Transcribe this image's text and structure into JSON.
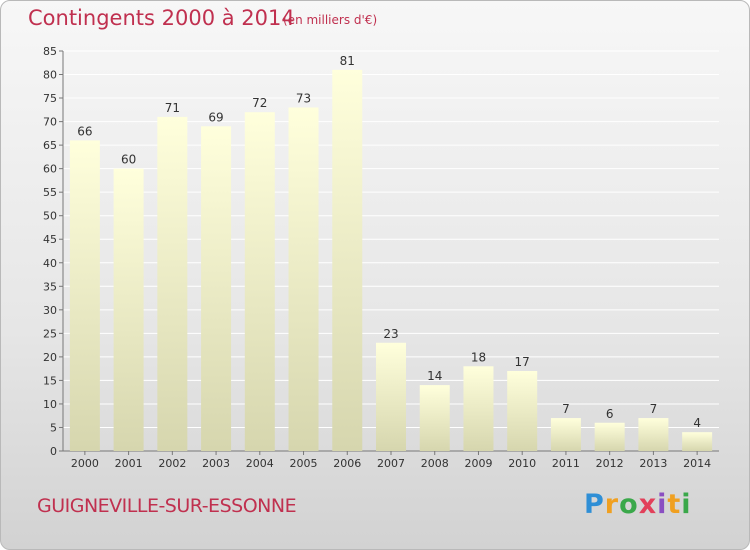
{
  "header": {
    "title": "Contingents 2000 à 2014",
    "subtitle": "(en milliers d'€)"
  },
  "footer": {
    "place": "GUIGNEVILLE-SUR-ESSONNE",
    "logo": [
      "P",
      "r",
      "o",
      "x",
      "i",
      "t",
      "i"
    ]
  },
  "colors": {
    "title": "#c0304f",
    "bar_top": "#ffffdc",
    "bar_bottom": "#d8d8b0",
    "grid": "#ffffff"
  },
  "chart_data": {
    "type": "bar",
    "title": "Contingents 2000 à 2014",
    "subtitle": "(en milliers d'€)",
    "xlabel": "",
    "ylabel": "",
    "categories": [
      "2000",
      "2001",
      "2002",
      "2003",
      "2004",
      "2005",
      "2006",
      "2007",
      "2008",
      "2009",
      "2010",
      "2011",
      "2012",
      "2013",
      "2014"
    ],
    "values": [
      66,
      60,
      71,
      69,
      72,
      73,
      81,
      23,
      14,
      18,
      17,
      7,
      6,
      7,
      4
    ],
    "ylim": [
      0,
      85
    ],
    "yticks": [
      0,
      5,
      10,
      15,
      20,
      25,
      30,
      35,
      40,
      45,
      50,
      55,
      60,
      65,
      70,
      75,
      80,
      85
    ],
    "grid": true,
    "legend": "none"
  }
}
